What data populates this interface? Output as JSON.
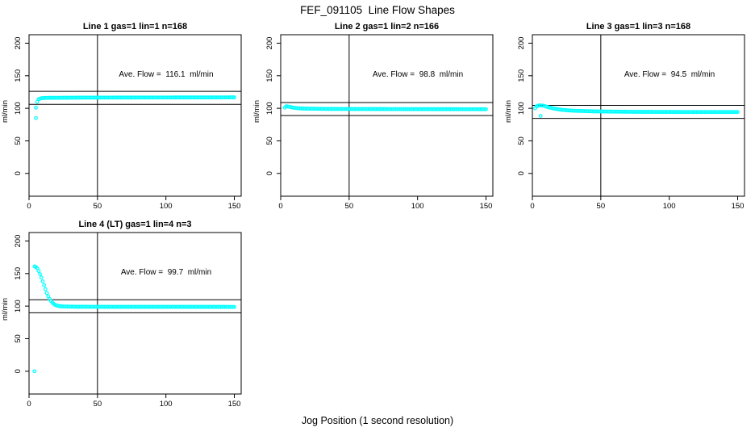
{
  "page": {
    "title": "FEF_091105  Line Flow Shapes",
    "xlabel": "Jog Position (1 second resolution)"
  },
  "colors": {
    "marker": "#00FFFF",
    "line": "#000000",
    "background": "#FFFFFF"
  },
  "axes": {
    "xlim": [
      0,
      155
    ],
    "ylim": [
      -35,
      213
    ],
    "xticks": [
      0,
      50,
      100,
      150
    ],
    "yticks": [
      0,
      50,
      100,
      150,
      200
    ],
    "ylabel": "ml/min",
    "vline_x": 50,
    "grid": false,
    "marker": "open-circle"
  },
  "chart_data": [
    {
      "type": "scatter",
      "title": "Line 1 gas=1 lin=1 n=168",
      "annotation": "Ave. Flow =  116.1  ml/min",
      "ave_flow": 116.1,
      "ref_upper": 126.1,
      "ref_lower": 106.1,
      "outliers": [
        [
          5,
          101
        ],
        [
          5,
          85
        ]
      ],
      "profile": [
        [
          6,
          110
        ],
        [
          7,
          114
        ],
        [
          9,
          115.5
        ],
        [
          12,
          116
        ],
        [
          40,
          116.4
        ],
        [
          150,
          116.8
        ]
      ]
    },
    {
      "type": "scatter",
      "title": "Line 2 gas=1 lin=2 n=166",
      "annotation": "Ave. Flow =  98.8  ml/min",
      "ave_flow": 98.8,
      "ref_upper": 108.8,
      "ref_lower": 88.8,
      "outliers": [],
      "profile": [
        [
          3,
          101
        ],
        [
          4,
          103
        ],
        [
          6,
          102.5
        ],
        [
          9,
          101
        ],
        [
          13,
          100
        ],
        [
          18,
          99.5
        ],
        [
          35,
          99
        ],
        [
          80,
          98.8
        ],
        [
          150,
          98.6
        ]
      ]
    },
    {
      "type": "scatter",
      "title": "Line 3 gas=1 lin=3 n=168",
      "annotation": "Ave. Flow =  94.5  ml/min",
      "ave_flow": 94.5,
      "ref_upper": 104.5,
      "ref_lower": 84.5,
      "outliers": [
        [
          6,
          88.5
        ]
      ],
      "profile": [
        [
          2,
          100
        ],
        [
          3,
          103
        ],
        [
          5,
          104.5
        ],
        [
          8,
          104
        ],
        [
          12,
          101.5
        ],
        [
          16,
          99.5
        ],
        [
          22,
          97.5
        ],
        [
          30,
          96.3
        ],
        [
          45,
          95.3
        ],
        [
          70,
          94.6
        ],
        [
          110,
          94.3
        ],
        [
          150,
          94.3
        ]
      ]
    },
    {
      "type": "scatter",
      "title": "Line 4 (LT) gas=1 lin=4 n=3",
      "annotation": "Ave. Flow =  99.7  ml/min",
      "ave_flow": 99.7,
      "ref_upper": 109.7,
      "ref_lower": 89.7,
      "outliers": [
        [
          4,
          0
        ]
      ],
      "profile": [
        [
          4,
          161
        ],
        [
          5,
          160
        ],
        [
          6,
          158
        ],
        [
          7,
          154
        ],
        [
          8,
          149
        ],
        [
          9,
          144
        ],
        [
          10,
          138
        ],
        [
          11,
          132
        ],
        [
          12,
          126
        ],
        [
          13,
          120
        ],
        [
          14,
          115
        ],
        [
          15,
          111
        ],
        [
          16,
          108
        ],
        [
          17,
          105.5
        ],
        [
          18,
          103.5
        ],
        [
          19,
          102
        ],
        [
          20,
          101
        ],
        [
          22,
          100
        ],
        [
          26,
          99.4
        ],
        [
          35,
          99
        ],
        [
          60,
          98.9
        ],
        [
          100,
          98.9
        ],
        [
          150,
          98.8
        ]
      ]
    }
  ]
}
